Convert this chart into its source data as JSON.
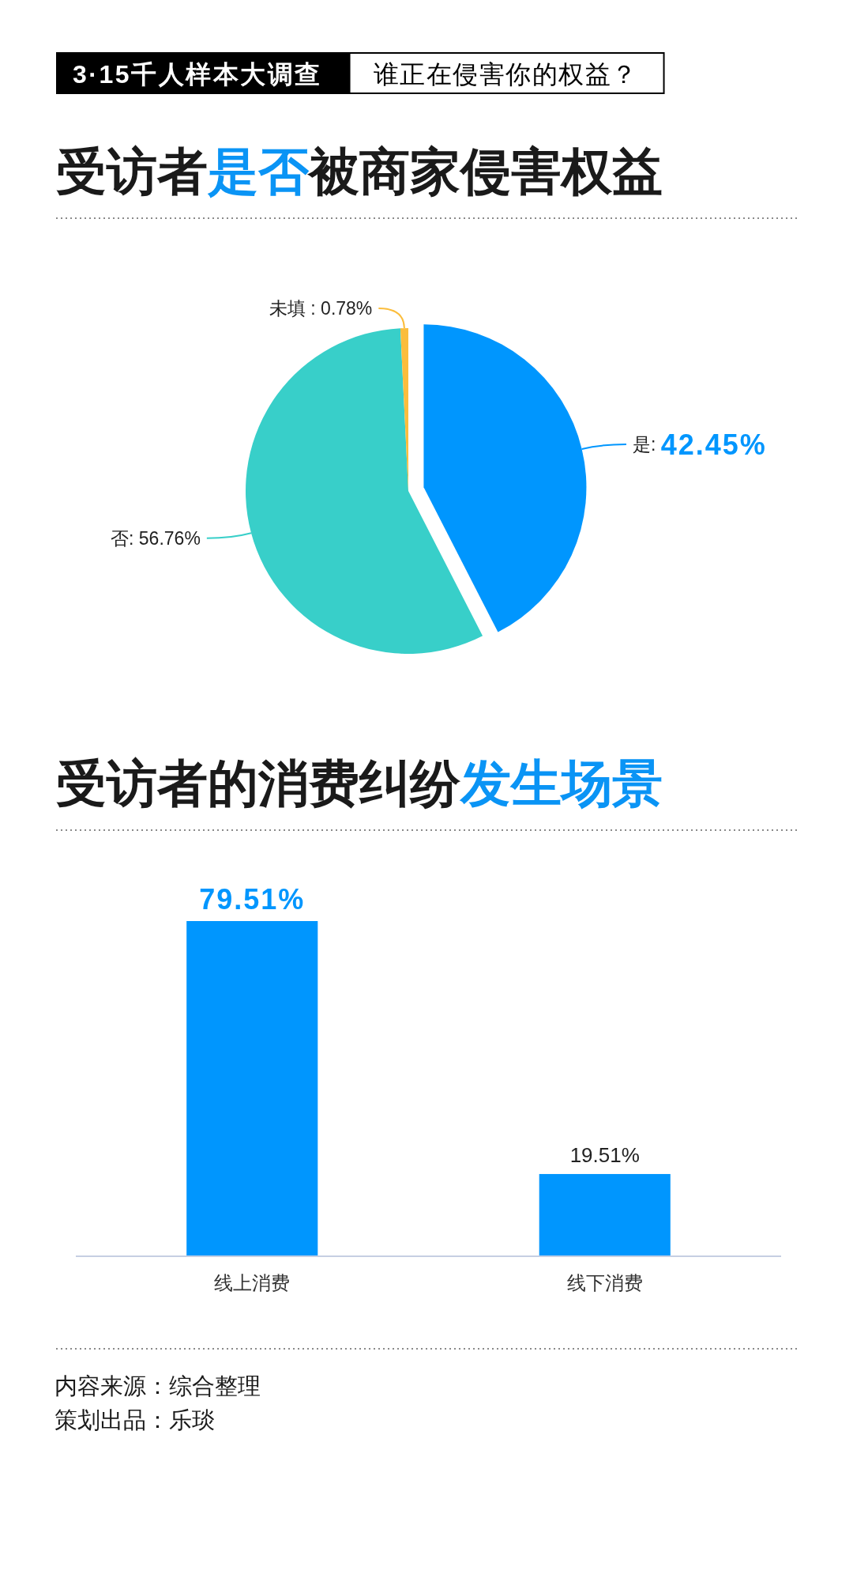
{
  "chart_data": [
    {
      "type": "other",
      "title": "3·15千人样本大调查",
      "subtitle": "谁正在侵害你的权益？"
    },
    {
      "type": "pie",
      "title": "受访者**是否**被商家侵害权益",
      "categories": [
        "是",
        "否",
        "未填"
      ],
      "values": [
        42.45,
        56.76,
        0.78
      ],
      "colors": [
        "#0096fe",
        "#38cfc9",
        "#fbbd3c"
      ],
      "value_labels": [
        ": **42.45%**",
        ": 56.76%",
        " : 0.78%"
      ]
    },
    {
      "type": "bar",
      "title": "受访者的消费纠纷**发生场景**",
      "categories": [
        "线上消费",
        "线下消费"
      ],
      "values": [
        79.51,
        19.51
      ],
      "color": "#0096fe",
      "value_labels": [
        "**79.51%**",
        "19.51%"
      ],
      "annotations": [
        "内容来源：综合整理",
        "策划出品：乐琰"
      ]
    }
  ]
}
